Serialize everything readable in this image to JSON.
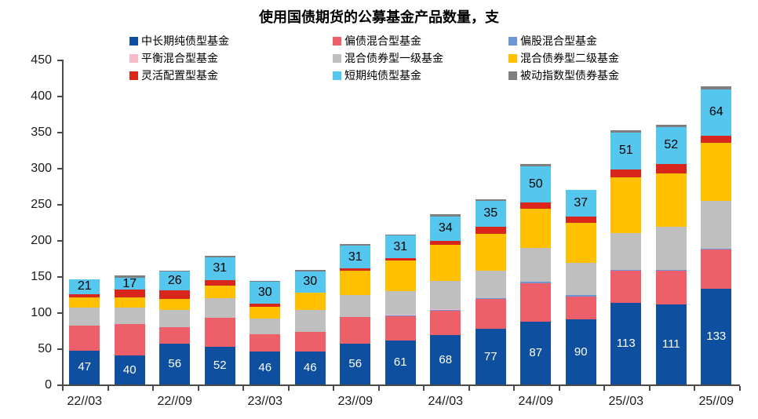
{
  "title": "使用国债期货的公募基金产品数量，支",
  "chart_data": {
    "type": "bar",
    "stacked": true,
    "title": "使用国债期货的公募基金产品数量，支",
    "xlabel": "",
    "ylabel": "",
    "ylim": [
      0,
      450
    ],
    "y_step": 50,
    "grid": false,
    "legend_position": "top",
    "categories": [
      "22//03",
      "",
      "22//09",
      "",
      "23//03",
      "",
      "23//09",
      "",
      "24//03",
      "",
      "24//09",
      "",
      "25//03",
      "",
      "25//09"
    ],
    "x_tick_labels_visible": [
      "22//03",
      "22//09",
      "23//03",
      "23//09",
      "24//03",
      "24//09",
      "25//03",
      "25//09"
    ],
    "series": [
      {
        "name": "中长期纯债型基金",
        "color": "#0e4f9f",
        "data_labels": "white",
        "values": [
          47,
          40,
          56,
          52,
          46,
          46,
          56,
          61,
          68,
          77,
          87,
          90,
          113,
          111,
          133
        ]
      },
      {
        "name": "偏债混合型基金",
        "color": "#ee6069",
        "data_labels": null,
        "values": [
          35,
          44,
          23,
          40,
          24,
          27,
          37,
          34,
          34,
          42,
          53,
          32,
          45,
          47,
          54
        ]
      },
      {
        "name": "偏股混合型基金",
        "color": "#6f96d4",
        "data_labels": null,
        "values": [
          0,
          0,
          0,
          0,
          0,
          0,
          0,
          1,
          1,
          1,
          2,
          2,
          1,
          1,
          1
        ]
      },
      {
        "name": "平衡混合型基金",
        "color": "#f5bdc9",
        "data_labels": null,
        "values": [
          0,
          0,
          0,
          0,
          0,
          0,
          0,
          1,
          1,
          0,
          0,
          0,
          0,
          0,
          0
        ]
      },
      {
        "name": "混合债券型一级基金",
        "color": "#bfbfbf",
        "data_labels": null,
        "values": [
          24,
          23,
          24,
          28,
          21,
          30,
          31,
          32,
          40,
          38,
          47,
          44,
          51,
          60,
          66
        ]
      },
      {
        "name": "混合债券型二级基金",
        "color": "#ffc000",
        "data_labels": null,
        "values": [
          15,
          14,
          16,
          17,
          17,
          24,
          34,
          43,
          50,
          51,
          54,
          56,
          77,
          73,
          81
        ]
      },
      {
        "name": "灵活配置型基金",
        "color": "#d9261d",
        "data_labels": null,
        "values": [
          4,
          10,
          11,
          8,
          4,
          0,
          3,
          3,
          5,
          10,
          9,
          9,
          11,
          13,
          10
        ]
      },
      {
        "name": "短期纯债型基金",
        "color": "#55c7ee",
        "data_labels": "black",
        "values": [
          21,
          17,
          26,
          31,
          30,
          30,
          31,
          31,
          34,
          35,
          50,
          37,
          51,
          52,
          64
        ]
      },
      {
        "name": "被动指数型债券基金",
        "color": "#7f7f7f",
        "data_labels": null,
        "values": [
          0,
          3,
          2,
          2,
          2,
          2,
          3,
          2,
          3,
          3,
          3,
          0,
          3,
          3,
          4
        ]
      }
    ]
  }
}
